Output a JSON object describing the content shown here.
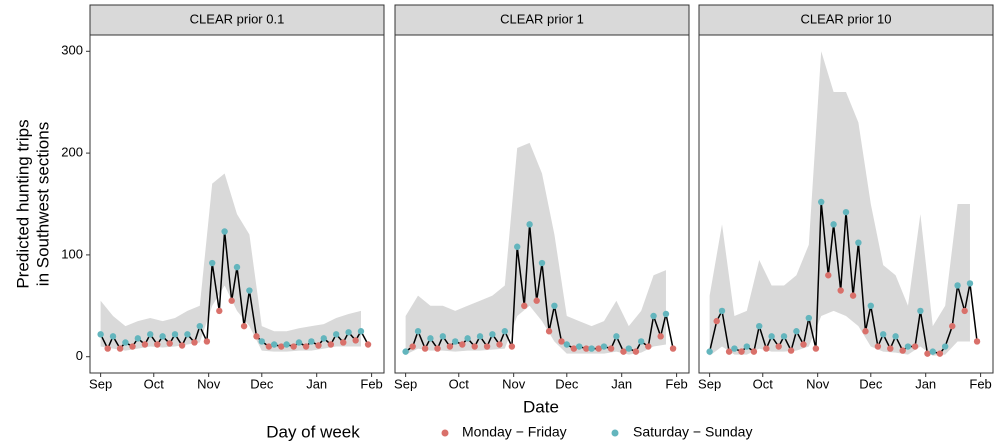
{
  "axes": {
    "ylabel": [
      "Predicted hunting trips",
      "in Southwest sections"
    ],
    "xlabel": "Date"
  },
  "legend": {
    "title": "Day of week"
  },
  "chart_data": [
    {
      "type": "line",
      "title": "CLEAR prior 0.1",
      "xlim": [
        -6,
        160
      ],
      "ylim": [
        -16,
        316
      ],
      "yticks": [
        0,
        100,
        200,
        300
      ],
      "xticks": [
        {
          "value": 0,
          "label": "Sep"
        },
        {
          "value": 30,
          "label": "Oct"
        },
        {
          "value": 61,
          "label": "Nov"
        },
        {
          "value": 91,
          "label": "Dec"
        },
        {
          "value": 122,
          "label": "Jan"
        },
        {
          "value": 153,
          "label": "Feb"
        }
      ],
      "band": {
        "color": "#d9d9d9",
        "x": [
          0,
          7,
          14,
          21,
          28,
          35,
          42,
          49,
          56,
          63,
          70,
          77,
          84,
          91,
          98,
          105,
          112,
          119,
          126,
          133,
          140,
          147
        ],
        "lower": [
          10,
          8,
          6,
          8,
          10,
          9,
          10,
          12,
          14,
          50,
          70,
          45,
          30,
          6,
          5,
          5,
          6,
          6,
          8,
          10,
          10,
          10
        ],
        "upper": [
          55,
          40,
          30,
          35,
          38,
          35,
          38,
          45,
          50,
          170,
          180,
          140,
          120,
          30,
          25,
          25,
          28,
          30,
          32,
          38,
          42,
          45
        ]
      },
      "series": [
        {
          "name": "Monday − Friday",
          "color": "#d9706a",
          "x": [
            4,
            11,
            18,
            25,
            32,
            39,
            46,
            53,
            60,
            67,
            74,
            81,
            88,
            95,
            102,
            109,
            116,
            123,
            130,
            137,
            144,
            151
          ],
          "values": [
            8,
            8,
            10,
            12,
            12,
            13,
            11,
            14,
            15,
            45,
            55,
            30,
            20,
            10,
            10,
            10,
            10,
            11,
            12,
            14,
            16,
            12
          ]
        },
        {
          "name": "Saturday − Sunday",
          "color": "#63b5bd",
          "x": [
            0,
            7,
            14,
            21,
            28,
            35,
            42,
            49,
            56,
            63,
            70,
            77,
            84,
            91,
            98,
            105,
            112,
            119,
            126,
            133,
            140,
            147
          ],
          "values": [
            22,
            20,
            14,
            18,
            22,
            20,
            22,
            22,
            30,
            92,
            123,
            88,
            65,
            15,
            12,
            12,
            14,
            15,
            18,
            22,
            24,
            25
          ]
        }
      ]
    },
    {
      "type": "line",
      "title": "CLEAR prior 1",
      "xlim": [
        -6,
        160
      ],
      "ylim": [
        -16,
        316
      ],
      "xticks": [
        {
          "value": 0,
          "label": "Sep"
        },
        {
          "value": 30,
          "label": "Oct"
        },
        {
          "value": 61,
          "label": "Nov"
        },
        {
          "value": 91,
          "label": "Dec"
        },
        {
          "value": 122,
          "label": "Jan"
        },
        {
          "value": 153,
          "label": "Feb"
        }
      ],
      "band": {
        "color": "#d9d9d9",
        "x": [
          0,
          7,
          14,
          21,
          28,
          35,
          42,
          49,
          56,
          63,
          70,
          77,
          84,
          91,
          98,
          105,
          112,
          119,
          126,
          133,
          140,
          147
        ],
        "lower": [
          2,
          8,
          6,
          6,
          5,
          6,
          6,
          7,
          8,
          40,
          50,
          35,
          15,
          3,
          3,
          3,
          3,
          5,
          2,
          4,
          10,
          12
        ],
        "upper": [
          40,
          60,
          50,
          50,
          45,
          50,
          55,
          60,
          70,
          205,
          210,
          180,
          120,
          40,
          35,
          30,
          35,
          55,
          30,
          45,
          80,
          85
        ]
      },
      "series": [
        {
          "name": "Monday − Friday",
          "color": "#d9706a",
          "x": [
            4,
            11,
            18,
            25,
            32,
            39,
            46,
            53,
            60,
            67,
            74,
            81,
            88,
            95,
            102,
            109,
            116,
            123,
            130,
            137,
            144,
            151
          ],
          "values": [
            10,
            8,
            8,
            10,
            12,
            10,
            10,
            12,
            10,
            50,
            55,
            25,
            15,
            8,
            8,
            8,
            8,
            5,
            5,
            10,
            20,
            8
          ]
        },
        {
          "name": "Saturday − Sunday",
          "color": "#63b5bd",
          "x": [
            0,
            7,
            14,
            21,
            28,
            35,
            42,
            49,
            56,
            63,
            70,
            77,
            84,
            91,
            98,
            105,
            112,
            119,
            126,
            133,
            140,
            147
          ],
          "values": [
            5,
            25,
            18,
            20,
            15,
            18,
            20,
            22,
            25,
            108,
            130,
            92,
            50,
            12,
            10,
            8,
            10,
            20,
            8,
            15,
            40,
            42
          ]
        }
      ]
    },
    {
      "type": "line",
      "title": "CLEAR prior 10",
      "xlim": [
        -6,
        160
      ],
      "ylim": [
        -16,
        316
      ],
      "xticks": [
        {
          "value": 0,
          "label": "Sep"
        },
        {
          "value": 30,
          "label": "Oct"
        },
        {
          "value": 61,
          "label": "Nov"
        },
        {
          "value": 91,
          "label": "Dec"
        },
        {
          "value": 122,
          "label": "Jan"
        },
        {
          "value": 153,
          "label": "Feb"
        }
      ],
      "band": {
        "color": "#d9d9d9",
        "x": [
          0,
          7,
          14,
          21,
          28,
          35,
          42,
          49,
          56,
          63,
          70,
          77,
          84,
          91,
          98,
          105,
          112,
          119,
          126,
          133,
          140,
          147
        ],
        "lower": [
          1,
          10,
          2,
          2,
          8,
          5,
          5,
          6,
          10,
          40,
          45,
          40,
          30,
          10,
          5,
          4,
          2,
          10,
          1,
          2,
          15,
          15
        ],
        "upper": [
          60,
          130,
          40,
          45,
          95,
          70,
          70,
          80,
          110,
          300,
          260,
          260,
          230,
          150,
          90,
          80,
          50,
          140,
          30,
          50,
          150,
          150
        ]
      },
      "series": [
        {
          "name": "Monday − Friday",
          "color": "#d9706a",
          "x": [
            4,
            11,
            18,
            25,
            32,
            39,
            46,
            53,
            60,
            67,
            74,
            81,
            88,
            95,
            102,
            109,
            116,
            123,
            130,
            137,
            144,
            151
          ],
          "values": [
            35,
            5,
            5,
            5,
            8,
            10,
            6,
            12,
            8,
            80,
            65,
            60,
            25,
            10,
            8,
            6,
            10,
            3,
            3,
            30,
            45,
            15
          ]
        },
        {
          "name": "Saturday − Sunday",
          "color": "#63b5bd",
          "x": [
            0,
            7,
            14,
            21,
            28,
            35,
            42,
            49,
            56,
            63,
            70,
            77,
            84,
            91,
            98,
            105,
            112,
            119,
            126,
            133,
            140,
            147
          ],
          "values": [
            5,
            45,
            8,
            10,
            30,
            20,
            20,
            25,
            38,
            152,
            130,
            142,
            112,
            50,
            22,
            20,
            10,
            45,
            5,
            10,
            70,
            72
          ]
        }
      ]
    }
  ]
}
